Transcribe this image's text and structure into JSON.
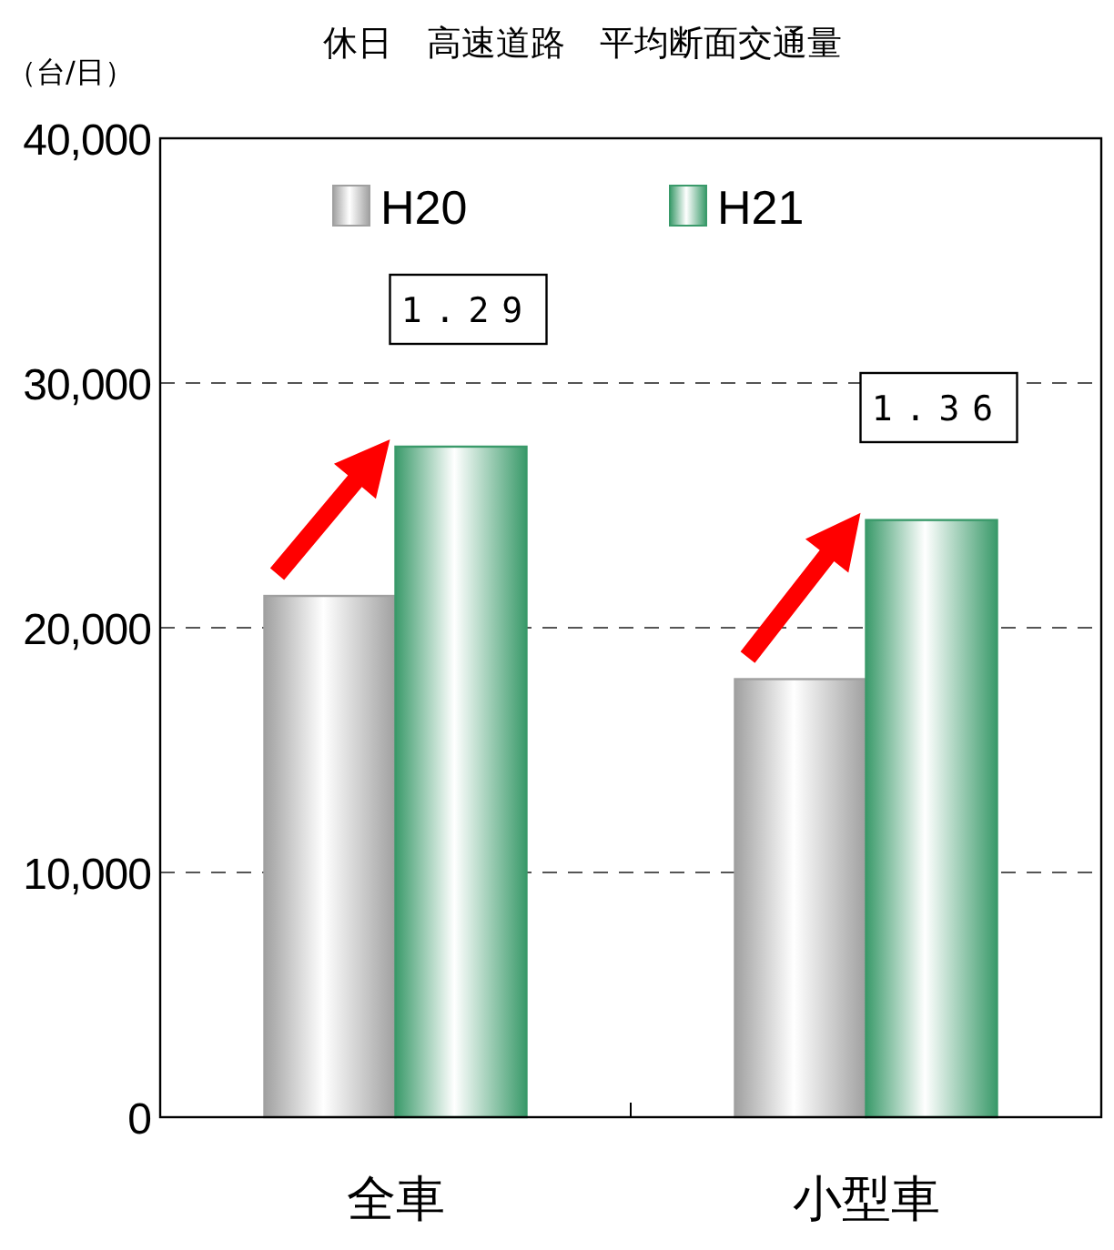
{
  "chart_data": {
    "type": "bar",
    "title": "休日　高速道路　平均断面交通量",
    "ylabel": "（台/日）",
    "categories": [
      "全車",
      "小型車"
    ],
    "series": [
      {
        "name": "H20",
        "color": "#a0a0a0",
        "values": [
          21300,
          17900
        ]
      },
      {
        "name": "H21",
        "color": "#3a9a6a",
        "values": [
          27400,
          24400
        ]
      }
    ],
    "ylim": [
      0,
      40000
    ],
    "yticks": [
      {
        "value": 0,
        "label": "0"
      },
      {
        "value": 10000,
        "label": "10,000"
      },
      {
        "value": 20000,
        "label": "20,000"
      },
      {
        "value": 30000,
        "label": "30,000"
      },
      {
        "value": 40000,
        "label": "40,000"
      }
    ],
    "grid": "y",
    "legend": "top left",
    "annotations": [
      "1.29",
      "1.36"
    ]
  }
}
